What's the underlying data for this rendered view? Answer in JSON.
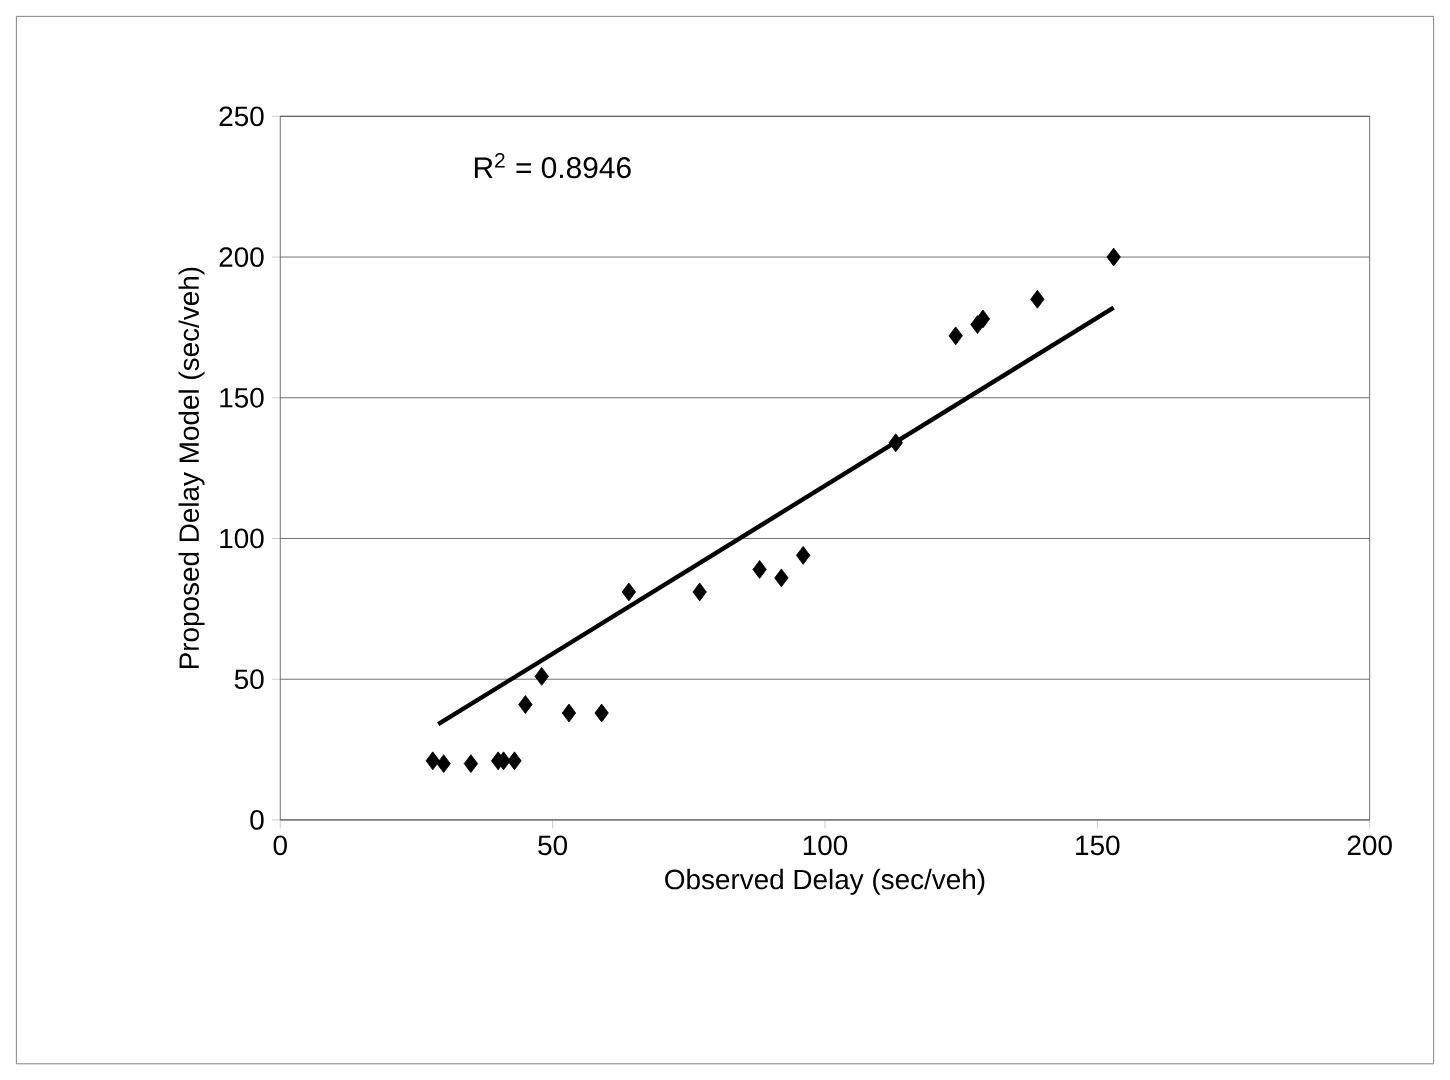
{
  "chart_data": {
    "type": "scatter",
    "xlabel": "Observed Delay (sec/veh)",
    "ylabel": "Proposed Delay Model (sec/veh)",
    "annotations": [
      "R$^{2}$ = 0.8946"
    ],
    "xlim": [
      0,
      200
    ],
    "xticks": [
      0,
      50,
      100,
      150,
      200
    ],
    "ylim": [
      0,
      250
    ],
    "yticks": [
      0,
      50,
      100,
      150,
      200,
      250
    ],
    "grid": "y",
    "marker": "diamond",
    "series": [
      {
        "color": "#000000",
        "x": [
          28,
          30,
          35,
          40,
          41,
          43,
          45,
          48,
          53,
          59,
          64,
          77,
          88,
          92,
          96,
          113,
          124,
          128,
          129,
          139,
          153
        ],
        "values": [
          21,
          20,
          20,
          21,
          21,
          21,
          41,
          51,
          38,
          38,
          81,
          81,
          89,
          86,
          94,
          134,
          172,
          176,
          178,
          185,
          200
        ]
      },
      {
        "type": "line",
        "color": "#000000",
        "marker": "none",
        "x": [
          29,
          153
        ],
        "values": [
          34,
          182
        ]
      }
    ]
  }
}
